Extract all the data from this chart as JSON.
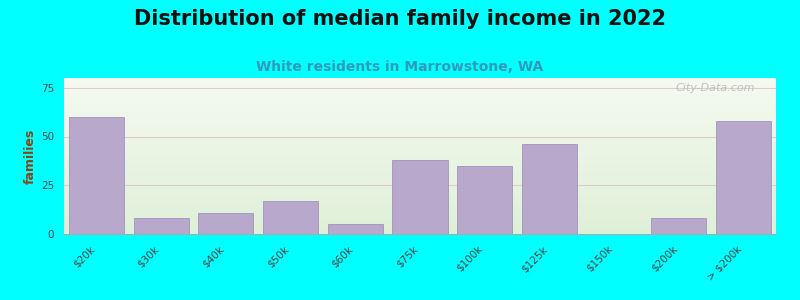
{
  "title": "Distribution of median family income in 2022",
  "subtitle": "White residents in Marrowstone, WA",
  "ylabel": "families",
  "background_color": "#00FFFF",
  "bar_color": "#b8a8cc",
  "bar_edge_color": "#9988bb",
  "categories": [
    "$20k",
    "$30k",
    "$40k",
    "$50k",
    "$60k",
    "$75k",
    "$100k",
    "$125k",
    "$150k",
    "$200k",
    "> $200k"
  ],
  "values": [
    60,
    8,
    11,
    17,
    5,
    38,
    35,
    46,
    0,
    8,
    58
  ],
  "yticks": [
    0,
    25,
    50,
    75
  ],
  "ylim": [
    0,
    80
  ],
  "watermark": "City-Data.com",
  "title_fontsize": 15,
  "subtitle_fontsize": 10,
  "ylabel_fontsize": 9,
  "tick_fontsize": 7.5
}
